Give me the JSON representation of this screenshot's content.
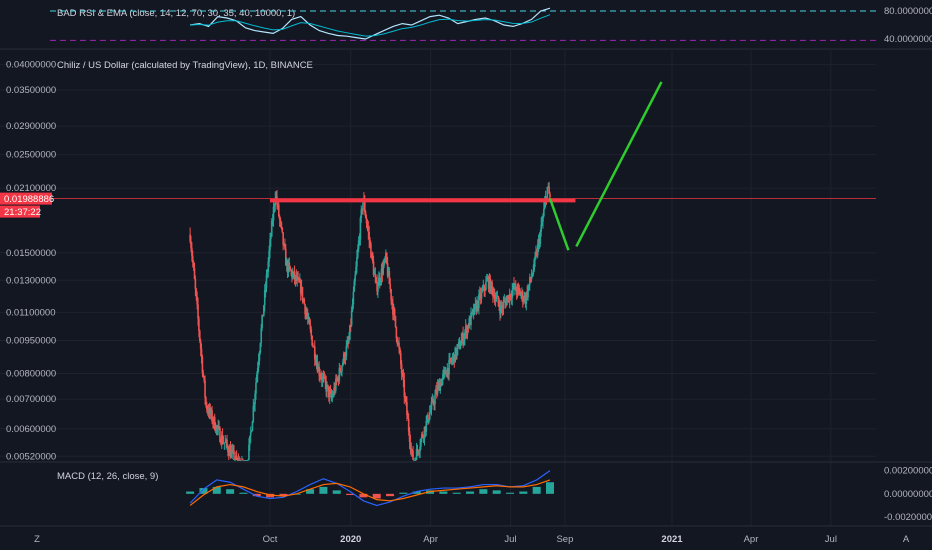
{
  "colors": {
    "background": "#131722",
    "grid": "#1e222d",
    "up": "#26a69a",
    "down": "#ef5350",
    "resistance": "#f23645",
    "projection": "#2ecc2e",
    "macd_line": "#2962ff",
    "signal_line": "#ff6d00",
    "rsi_line": "#b3e5fc",
    "rsi_ema": "#00bcd4",
    "rsi_band_upper": "#4dd0e1",
    "rsi_band_lower": "#9c27b0"
  },
  "footer_icons": {
    "left": "Z",
    "right": "A"
  },
  "chart_data": [
    {
      "type": "line",
      "panel": "rsi",
      "title": "BAD RSI & EMA (close, 14, 12, 70, 30, 35, 40, 10000, 1)",
      "ylim": [
        30,
        90
      ],
      "yticks": [
        "80.00000000",
        "40.00000000"
      ],
      "ytick_values": [
        80,
        40
      ],
      "bands": {
        "upper": 80,
        "lower": 38
      },
      "series": [
        {
          "values": [
            60,
            62,
            58,
            72,
            70,
            66,
            56,
            52,
            50,
            48,
            55,
            68,
            72,
            60,
            52,
            48,
            45,
            44,
            42,
            40,
            46,
            52,
            58,
            62,
            60,
            66,
            72,
            74,
            70,
            62,
            65,
            68,
            70,
            66,
            60,
            58,
            62,
            68,
            80,
            84
          ]
        }
      ]
    },
    {
      "type": "candlestick",
      "panel": "price",
      "title": "Chiliz / US Dollar (calculated by TradingView), 1D, BINANCE",
      "yscale": "log",
      "ylim": [
        0.0051,
        0.0405
      ],
      "yticks": [
        "0.04000000",
        "0.03500000",
        "0.02900000",
        "0.02500000",
        "0.02100000",
        "0.01500000",
        "0.01300000",
        "0.01100000",
        "0.00950000",
        "0.00800000",
        "0.00700000",
        "0.00600000",
        "0.00520000"
      ],
      "ytick_values": [
        0.04,
        0.035,
        0.029,
        0.025,
        0.021,
        0.015,
        0.013,
        0.011,
        0.0095,
        0.008,
        0.007,
        0.006,
        0.0052
      ],
      "xticks": [
        "Oct",
        "2020",
        "Apr",
        "Jul",
        "Sep",
        "2021",
        "Apr",
        "Jul"
      ],
      "xtick_bold": [
        false,
        true,
        false,
        false,
        false,
        true,
        false,
        false
      ],
      "xtick_dates": [
        "2019-10-01",
        "2020-01-01",
        "2020-04-01",
        "2020-07-01",
        "2020-09-01",
        "2021-01-01",
        "2021-04-01",
        "2021-07-01"
      ],
      "last_price": "0.01988886",
      "countdown": "21:37:22",
      "last_price_value": 0.01988886,
      "anchors": [
        [
          "2019-07-02",
          0.0165
        ],
        [
          "2019-07-20",
          0.0068
        ],
        [
          "2019-08-05",
          0.0058
        ],
        [
          "2019-08-25",
          0.005
        ],
        [
          "2019-09-05",
          0.0049
        ],
        [
          "2019-09-25",
          0.012
        ],
        [
          "2019-10-07",
          0.0205
        ],
        [
          "2019-10-20",
          0.014
        ],
        [
          "2019-11-05",
          0.0125
        ],
        [
          "2019-11-25",
          0.0082
        ],
        [
          "2019-12-10",
          0.007
        ],
        [
          "2019-12-30",
          0.0095
        ],
        [
          "2020-01-15",
          0.02
        ],
        [
          "2020-01-30",
          0.0125
        ],
        [
          "2020-02-10",
          0.0145
        ],
        [
          "2020-02-25",
          0.009
        ],
        [
          "2020-03-12",
          0.005
        ],
        [
          "2020-03-25",
          0.006
        ],
        [
          "2020-04-10",
          0.0075
        ],
        [
          "2020-05-01",
          0.009
        ],
        [
          "2020-05-20",
          0.011
        ],
        [
          "2020-06-05",
          0.013
        ],
        [
          "2020-06-20",
          0.0112
        ],
        [
          "2020-07-05",
          0.0125
        ],
        [
          "2020-07-18",
          0.0118
        ],
        [
          "2020-07-28",
          0.014
        ],
        [
          "2020-08-05",
          0.017
        ],
        [
          "2020-08-12",
          0.021
        ],
        [
          "2020-08-15",
          0.0199
        ]
      ],
      "resistance": {
        "value": 0.0197,
        "from": "2019-10-01",
        "to": "2020-09-13"
      },
      "projection": [
        [
          "2020-08-15",
          0.0199
        ],
        [
          "2020-09-05",
          0.0152
        ],
        [
          "2020-09-14",
          0.0155
        ],
        [
          "2020-12-20",
          0.0365
        ]
      ]
    },
    {
      "type": "bar",
      "panel": "macd",
      "title": "MACD (12, 26, close, 9)",
      "ylim": [
        -0.0026,
        0.0024
      ],
      "yticks": [
        "0.00200000",
        "0.00000000",
        "-0.00200000"
      ],
      "ytick_values": [
        0.002,
        0,
        -0.002
      ],
      "series": [
        {
          "name": "histogram",
          "values": [
            0.0002,
            0.0005,
            0.0006,
            0.0004,
            0.0001,
            -0.0002,
            -0.0003,
            -0.0002,
            0.0,
            0.0004,
            0.0006,
            0.0003,
            -0.0001,
            -0.0003,
            -0.0004,
            -0.0002,
            0.0001,
            0.0002,
            0.0003,
            0.0002,
            0.0001,
            0.0002,
            0.0004,
            0.0003,
            0.0001,
            0.0002,
            0.0006,
            0.001
          ]
        },
        {
          "name": "macd",
          "values": [
            -0.0008,
            0.0004,
            0.0012,
            0.001,
            0.0004,
            -0.0002,
            -0.0004,
            -0.0003,
            0.0002,
            0.0008,
            0.0013,
            0.0009,
            0.0002,
            -0.0006,
            -0.001,
            -0.0007,
            -0.0002,
            0.0002,
            0.0004,
            0.0005,
            0.0005,
            0.0006,
            0.0008,
            0.0008,
            0.0006,
            0.0007,
            0.0012,
            0.002
          ]
        },
        {
          "name": "signal",
          "values": [
            -0.001,
            -0.0001,
            0.0006,
            0.0008,
            0.0006,
            0.0002,
            -0.0001,
            -0.0002,
            0.0,
            0.0004,
            0.0008,
            0.0009,
            0.0006,
            0.0,
            -0.0005,
            -0.0006,
            -0.0004,
            -0.0001,
            0.0002,
            0.0003,
            0.0004,
            0.0005,
            0.0006,
            0.0007,
            0.0006,
            0.0006,
            0.0008,
            0.0012
          ]
        }
      ]
    }
  ]
}
